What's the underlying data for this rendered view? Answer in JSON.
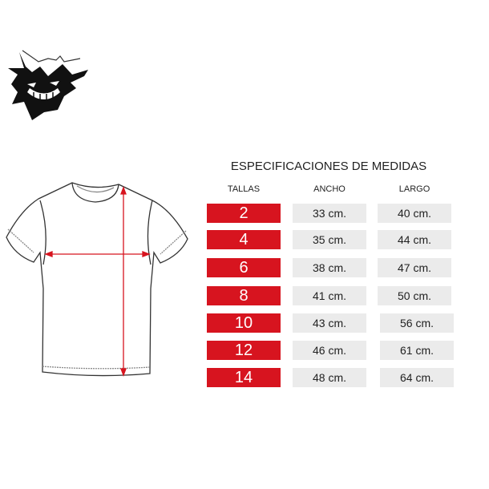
{
  "title": "ESPECIFICACIONES DE MEDIDAS",
  "headers": {
    "tallas": "TALLAS",
    "ancho": "ANCHO",
    "largo": "LARGO"
  },
  "rows": [
    {
      "talla": "2",
      "ancho": "33 cm.",
      "largo": "40 cm."
    },
    {
      "talla": "4",
      "ancho": "35 cm.",
      "largo": "44 cm."
    },
    {
      "talla": "6",
      "ancho": "38 cm.",
      "largo": "47 cm."
    },
    {
      "talla": "8",
      "ancho": "41 cm.",
      "largo": "50 cm."
    },
    {
      "talla": "10",
      "ancho": "43 cm.",
      "largo": "56 cm."
    },
    {
      "talla": "12",
      "ancho": "46 cm.",
      "largo": "61 cm."
    },
    {
      "talla": "14",
      "ancho": "48 cm.",
      "largo": "64 cm."
    }
  ],
  "colors": {
    "accent": "#d7141f",
    "cell": "#ebebeb"
  },
  "icons": {
    "logo": "ghost-monster-logo",
    "diagram": "tshirt-measurement-diagram"
  }
}
